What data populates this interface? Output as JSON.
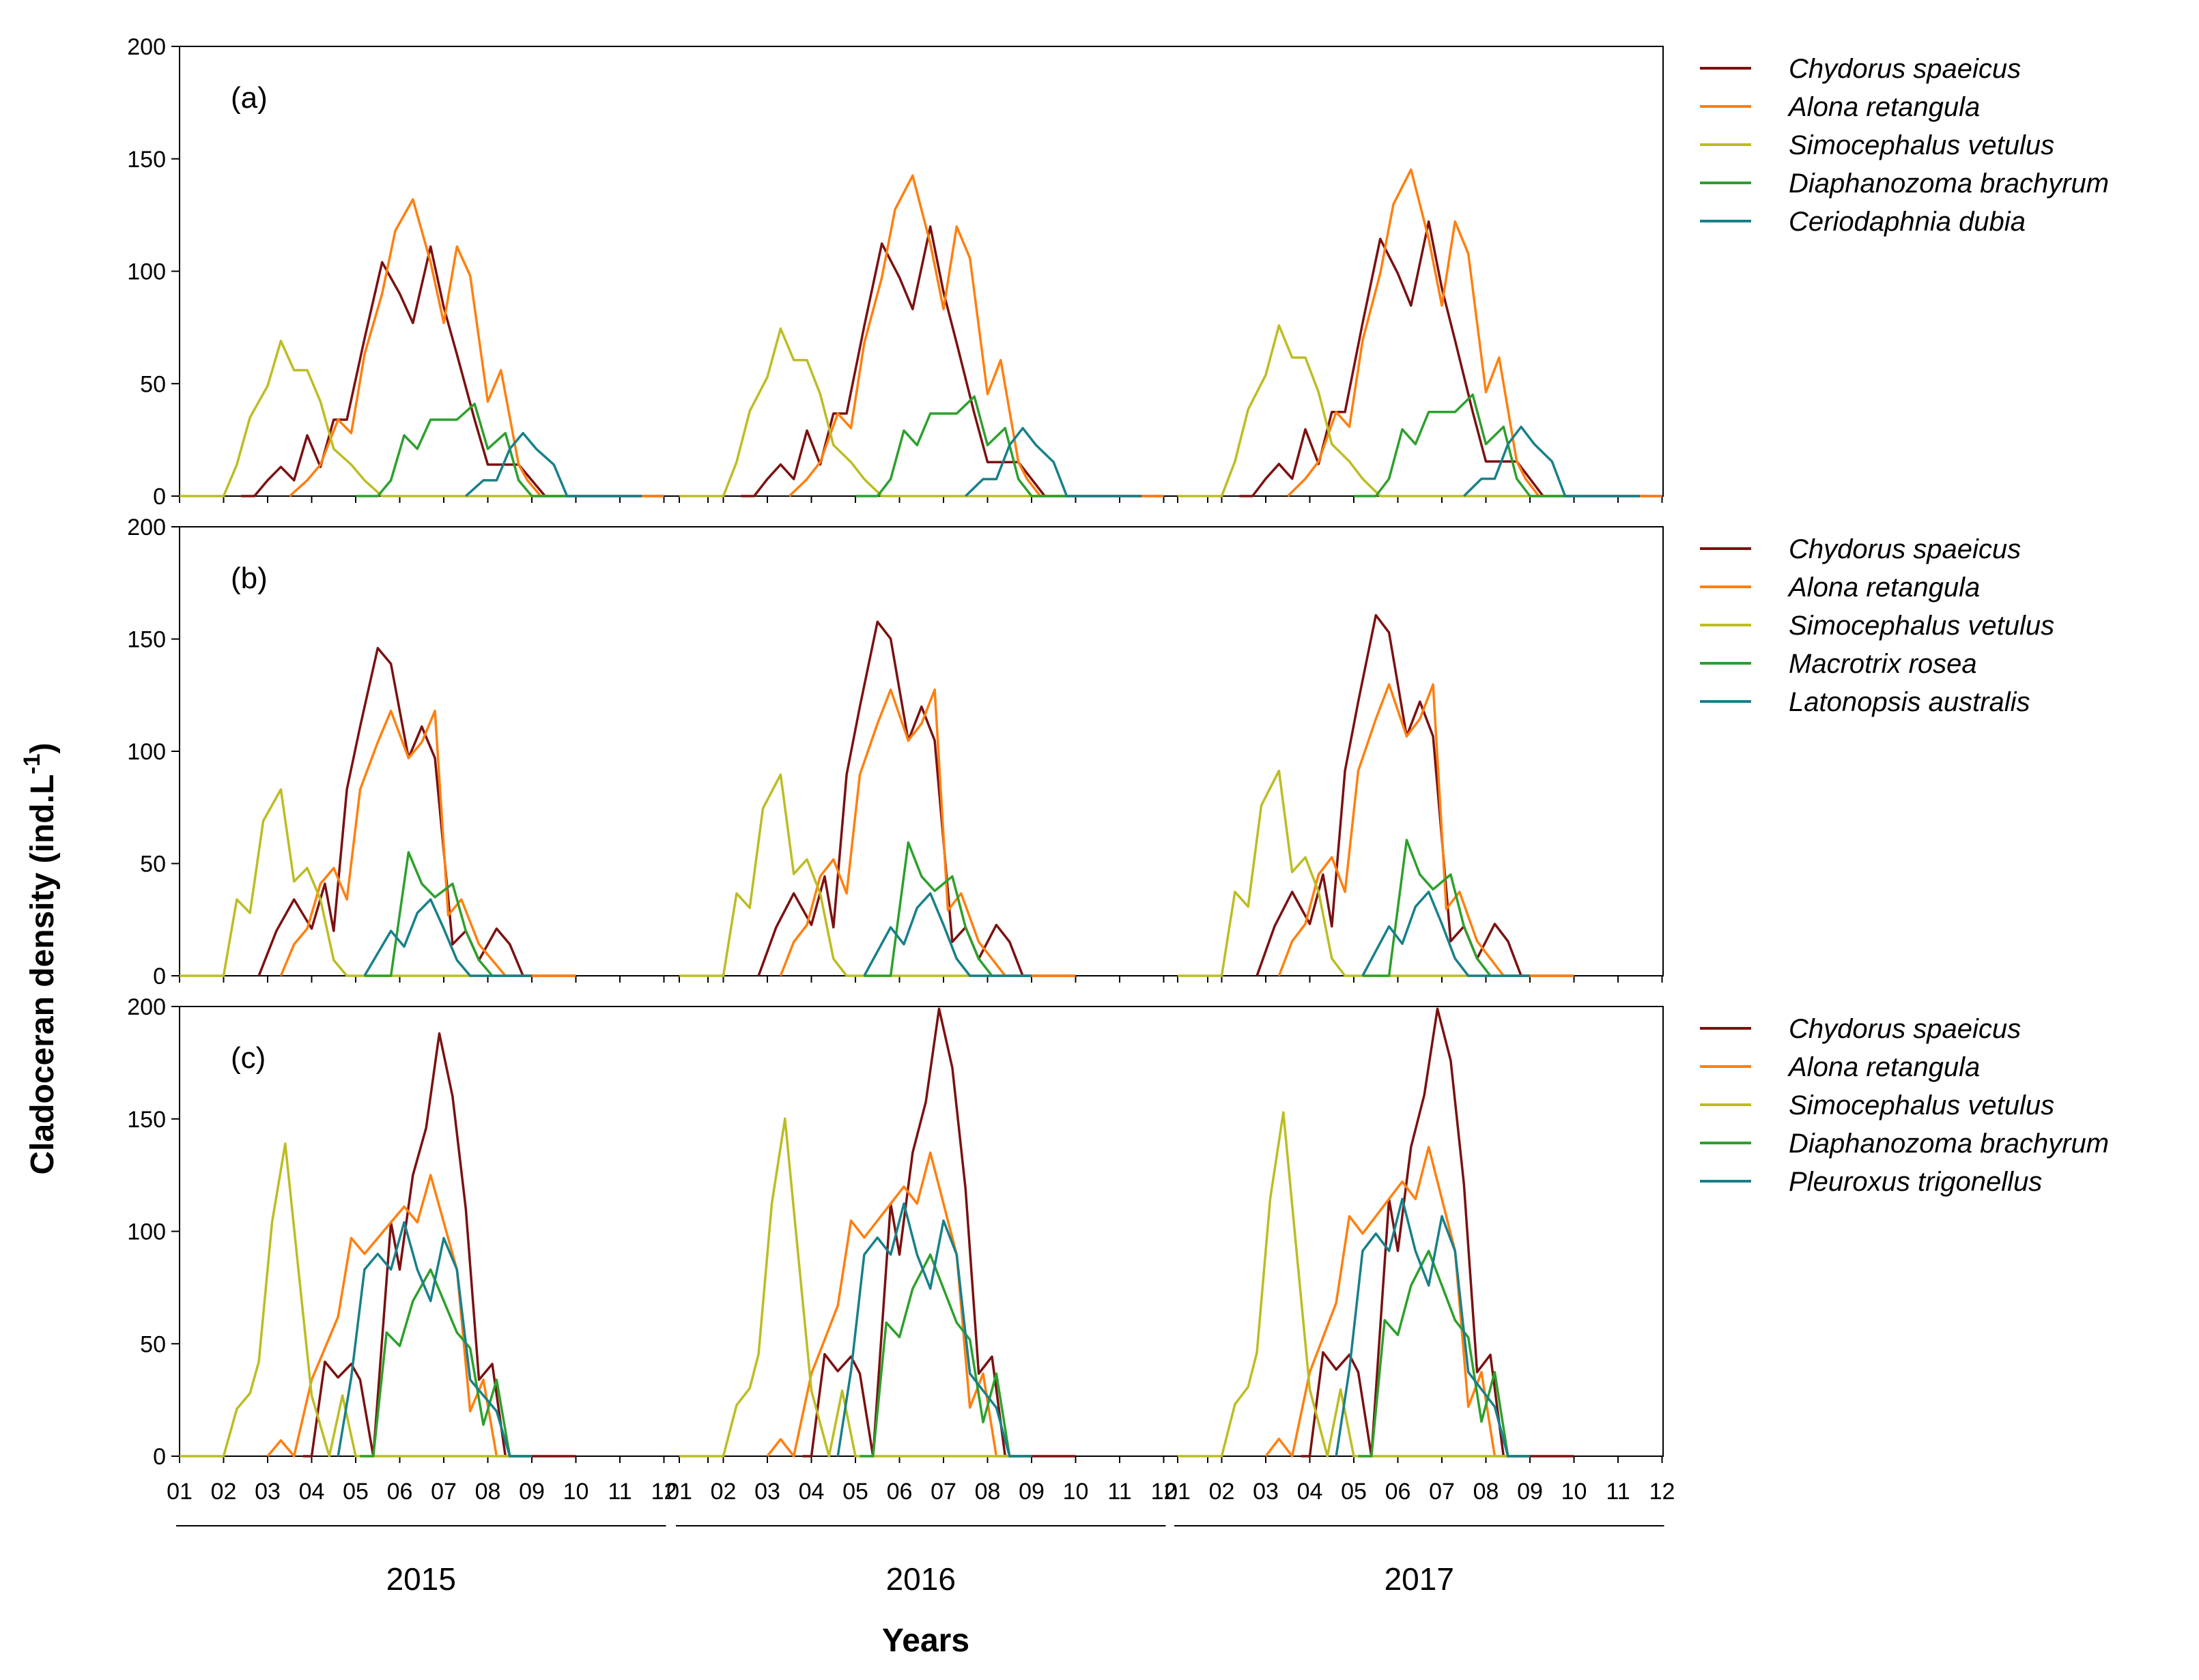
{
  "figure": {
    "y_title": "Cladoceran density (ind.L",
    "y_title_sup": "-1",
    "y_title_close": ")",
    "x_title": "Years",
    "month_ticks": [
      "01",
      "02",
      "03",
      "04",
      "05",
      "06",
      "07",
      "08",
      "09",
      "10",
      "11",
      "12"
    ],
    "years": [
      "2015",
      "2016",
      "2017"
    ]
  },
  "colors": {
    "Chydorus spaeicus": "#7b1111",
    "Alona retangula": "#ff7f0e",
    "Simocephalus vetulus": "#bcbd22",
    "Diaphanozoma brachyrum": "#2ca02c",
    "Ceriodaphnia dubia": "#17808a",
    "Macrotrix rosea": "#2ca02c",
    "Latonopsis australis": "#17808a",
    "Pleuroxus trigonellus": "#17808a"
  },
  "chart_data": [
    {
      "type": "line",
      "panel": "(a)",
      "ylim": [
        0,
        200
      ],
      "yticks": [
        0,
        50,
        100,
        150,
        200
      ],
      "xlim": [
        0,
        36
      ],
      "series": [
        {
          "name": "Chydorus spaeicus",
          "x": [
            1.4,
            1.7,
            2.0,
            2.3,
            2.6,
            2.9,
            3.2,
            3.5,
            3.8,
            4.2,
            4.6,
            5.0,
            5.3,
            5.7,
            6.0,
            6.3,
            6.7,
            7.0,
            7.3,
            7.7,
            8.0,
            8.3,
            8.6,
            8.9,
            9.2,
            9.5,
            10.0,
            10.5,
            11.0
          ],
          "y": [
            0,
            0,
            7,
            13,
            7,
            27,
            13,
            34,
            34,
            70,
            104,
            90,
            77,
            111,
            84,
            63,
            34,
            14,
            14,
            14,
            7,
            0,
            0,
            0,
            0,
            0,
            0,
            0,
            0
          ]
        },
        {
          "name": "Alona retangula",
          "x": [
            2.5,
            2.9,
            3.2,
            3.6,
            3.9,
            4.2,
            4.6,
            4.9,
            5.3,
            5.7,
            6.0,
            6.3,
            6.6,
            7.0,
            7.3,
            7.7,
            7.9,
            8.2,
            8.5,
            8.8,
            9.1,
            9.4,
            9.7,
            10.0,
            10.5,
            11.0
          ],
          "y": [
            0,
            7,
            14,
            34,
            28,
            63,
            90,
            118,
            132,
            104,
            77,
            111,
            98,
            42,
            56,
            14,
            7,
            0,
            0,
            0,
            0,
            0,
            0,
            0,
            0,
            0
          ]
        },
        {
          "name": "Simocephalus vetulus",
          "x": [
            0.0,
            0.5,
            1.0,
            1.3,
            1.6,
            2.0,
            2.3,
            2.6,
            2.9,
            3.2,
            3.5,
            3.9,
            4.2,
            4.6,
            5.0,
            5.5,
            6.0,
            6.5,
            7.0,
            7.5,
            8.0,
            8.5,
            9.0
          ],
          "y": [
            0,
            0,
            0,
            14,
            35,
            49,
            69,
            56,
            56,
            42,
            21,
            14,
            7,
            0,
            0,
            0,
            0,
            0,
            0,
            0,
            0,
            0,
            0
          ]
        },
        {
          "name": "Diaphanozoma brachyrum",
          "x": [
            4.0,
            4.5,
            4.8,
            5.1,
            5.4,
            5.7,
            6.0,
            6.3,
            6.7,
            7.0,
            7.4,
            7.7,
            8.0,
            8.3,
            8.6,
            9.0
          ],
          "y": [
            0,
            0,
            7,
            27,
            21,
            34,
            34,
            34,
            41,
            21,
            28,
            7,
            0,
            0,
            0,
            0
          ]
        },
        {
          "name": "Ceriodaphnia dubia",
          "x": [
            6.5,
            6.9,
            7.2,
            7.5,
            7.8,
            8.1,
            8.5,
            8.8,
            9.1,
            9.5,
            10.0,
            10.5
          ],
          "y": [
            0,
            7,
            7,
            21,
            28,
            21,
            14,
            0,
            0,
            0,
            0,
            0
          ]
        }
      ]
    },
    {
      "type": "line",
      "panel": "(b)",
      "ylim": [
        0,
        200
      ],
      "yticks": [
        0,
        50,
        100,
        150,
        200
      ],
      "xlim": [
        0,
        36
      ],
      "series": [
        {
          "name": "Chydorus spaeicus",
          "x": [
            1.8,
            2.2,
            2.6,
            3.0,
            3.3,
            3.5,
            3.8,
            4.1,
            4.5,
            4.8,
            5.2,
            5.5,
            5.8,
            6.2,
            6.5,
            6.8,
            7.2,
            7.5,
            7.8,
            8.2,
            8.5,
            9.0
          ],
          "y": [
            0,
            20,
            34,
            21,
            41,
            20,
            83,
            111,
            146,
            139,
            97,
            111,
            97,
            14,
            20,
            7,
            21,
            14,
            0,
            0,
            0,
            0
          ]
        },
        {
          "name": "Alona retangula",
          "x": [
            2.3,
            2.6,
            2.9,
            3.2,
            3.5,
            3.8,
            4.1,
            4.5,
            4.8,
            5.2,
            5.5,
            5.8,
            6.1,
            6.4,
            6.8,
            7.1,
            7.4,
            7.8,
            8.2,
            8.6,
            9.0
          ],
          "y": [
            0,
            14,
            21,
            41,
            48,
            34,
            83,
            104,
            118,
            97,
            104,
            118,
            27,
            34,
            14,
            7,
            0,
            0,
            0,
            0,
            0
          ]
        },
        {
          "name": "Simocephalus vetulus",
          "x": [
            0.0,
            0.5,
            1.0,
            1.3,
            1.6,
            1.9,
            2.3,
            2.6,
            2.9,
            3.2,
            3.5,
            3.8,
            4.1,
            4.5,
            5.0,
            5.5,
            6.0,
            6.5,
            7.0
          ],
          "y": [
            0,
            0,
            0,
            34,
            28,
            69,
            83,
            42,
            48,
            34,
            7,
            0,
            0,
            0,
            0,
            0,
            0,
            0,
            0
          ]
        },
        {
          "name": "Macrotrix rosea",
          "x": [
            4.2,
            4.8,
            5.2,
            5.5,
            5.8,
            6.2,
            6.5,
            6.8,
            7.1,
            7.5,
            8.0
          ],
          "y": [
            0,
            0,
            55,
            41,
            35,
            41,
            20,
            7,
            0,
            0,
            0
          ]
        },
        {
          "name": "Latonopsis australis",
          "x": [
            4.2,
            4.8,
            5.1,
            5.4,
            5.7,
            6.0,
            6.3,
            6.6,
            7.0,
            7.5,
            8.0
          ],
          "y": [
            0,
            20,
            13,
            28,
            34,
            21,
            7,
            0,
            0,
            0,
            0
          ]
        }
      ]
    },
    {
      "type": "line",
      "panel": "(c)",
      "ylim": [
        0,
        200
      ],
      "yticks": [
        0,
        50,
        100,
        150,
        200
      ],
      "xlim": [
        0,
        36
      ],
      "series": [
        {
          "name": "Chydorus spaeicus",
          "x": [
            2.8,
            3.0,
            3.3,
            3.6,
            3.9,
            4.1,
            4.4,
            4.8,
            5.0,
            5.3,
            5.6,
            5.9,
            6.2,
            6.5,
            6.8,
            7.1,
            7.4,
            7.7,
            8.0,
            8.2,
            9.0
          ],
          "y": [
            0,
            0,
            42,
            35,
            41,
            34,
            0,
            104,
            83,
            125,
            146,
            188,
            160,
            110,
            34,
            41,
            0,
            0,
            0,
            0,
            0
          ]
        },
        {
          "name": "Alona retangula",
          "x": [
            2.0,
            2.3,
            2.6,
            3.0,
            3.3,
            3.6,
            3.9,
            4.2,
            4.5,
            4.8,
            5.1,
            5.4,
            5.7,
            6.0,
            6.3,
            6.6,
            6.9,
            7.2,
            7.5,
            8.0
          ],
          "y": [
            0,
            7,
            0,
            34,
            48,
            62,
            97,
            90,
            97,
            104,
            111,
            104,
            125,
            104,
            83,
            20,
            34,
            0,
            0,
            0
          ]
        },
        {
          "name": "Simocephalus vetulus",
          "x": [
            0.0,
            0.5,
            1.0,
            1.3,
            1.6,
            1.8,
            2.1,
            2.4,
            2.7,
            3.0,
            3.4,
            3.7,
            4.0,
            4.5,
            5.0,
            5.5,
            6.0,
            6.5,
            7.0,
            7.5,
            8.0
          ],
          "y": [
            0,
            0,
            0,
            21,
            28,
            42,
            104,
            139,
            83,
            27,
            0,
            27,
            0,
            0,
            0,
            0,
            0,
            0,
            0,
            0,
            0
          ]
        },
        {
          "name": "Diaphanozoma brachyrum",
          "x": [
            4.1,
            4.4,
            4.7,
            5.0,
            5.3,
            5.7,
            6.0,
            6.3,
            6.6,
            6.9,
            7.2,
            7.5,
            8.0
          ],
          "y": [
            0,
            0,
            55,
            49,
            69,
            83,
            69,
            55,
            48,
            14,
            34,
            0,
            0
          ]
        },
        {
          "name": "Pleuroxus trigonellus",
          "x": [
            3.6,
            3.9,
            4.2,
            4.5,
            4.8,
            5.1,
            5.4,
            5.7,
            6.0,
            6.3,
            6.6,
            6.9,
            7.2,
            7.5,
            8.0
          ],
          "y": [
            0,
            35,
            83,
            90,
            83,
            104,
            83,
            69,
            97,
            83,
            34,
            27,
            20,
            0,
            0
          ]
        }
      ]
    }
  ],
  "legends": [
    [
      "Chydorus spaeicus",
      "Alona retangula",
      "Simocephalus vetulus",
      "Diaphanozoma brachyrum",
      "Ceriodaphnia dubia"
    ],
    [
      "Chydorus spaeicus",
      "Alona retangula",
      "Simocephalus vetulus",
      "Macrotrix rosea",
      "Latonopsis australis"
    ],
    [
      "Chydorus spaeicus",
      "Alona retangula",
      "Simocephalus vetulus",
      "Diaphanozoma brachyrum",
      "Pleuroxus trigonellus"
    ]
  ]
}
